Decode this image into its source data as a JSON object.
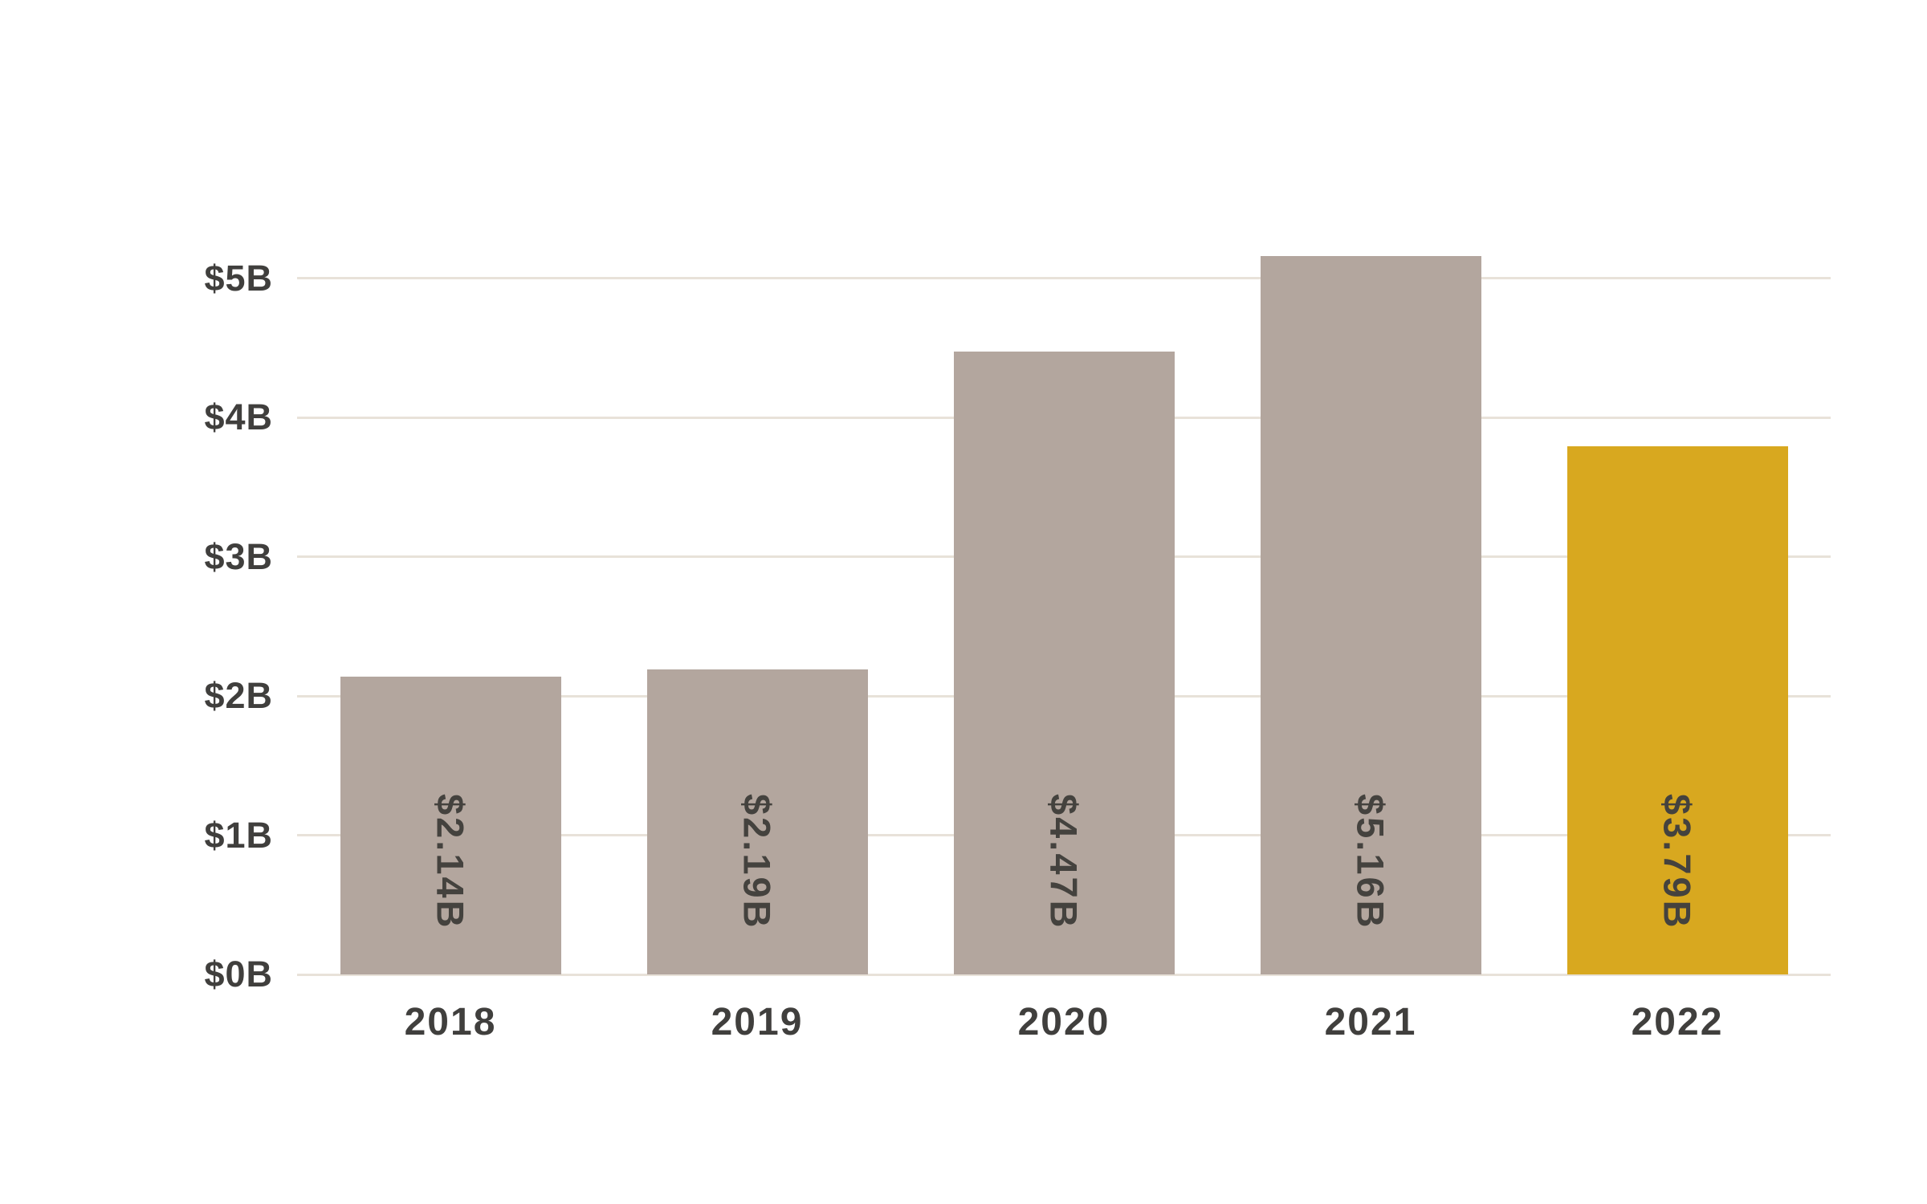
{
  "chart_data": {
    "type": "bar",
    "title": "",
    "xlabel": "",
    "ylabel": "",
    "categories": [
      "2018",
      "2019",
      "2020",
      "2021",
      "2022"
    ],
    "values": [
      2.14,
      2.19,
      4.47,
      5.16,
      3.79
    ],
    "bar_labels": [
      "$2.14B",
      "$2.19B",
      "$4.47B",
      "$5.16B",
      "$3.79B"
    ],
    "y_ticks": [
      {
        "value": 0,
        "label": "$0B"
      },
      {
        "value": 1,
        "label": "$1B"
      },
      {
        "value": 2,
        "label": "$2B"
      },
      {
        "value": 3,
        "label": "$3B"
      },
      {
        "value": 4,
        "label": "$4B"
      },
      {
        "value": 5,
        "label": "$5B"
      }
    ],
    "ylim": [
      0,
      5.6
    ],
    "grid": "horizontal",
    "legend": "none",
    "highlight_index": 4,
    "colors": {
      "bar": "#b3a69e",
      "highlight": "#d8a81f",
      "bar_label_text": "#44423e",
      "axis_text": "#403f3d",
      "gridline": "#e8e2d9",
      "background": "#ffffff"
    }
  }
}
